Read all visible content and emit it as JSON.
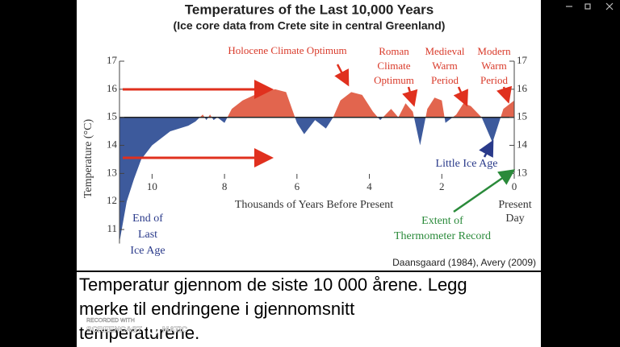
{
  "chart_data": {
    "type": "area",
    "title": "Temperatures of the Last 10,000 Years",
    "subtitle": "(Ice core data from Crete site in central Greenland)",
    "x_label": "Thousands of Years Before Present",
    "y_label": "Temperature (°C)",
    "source": "Daansgaard (1984), Avery (2009)",
    "xlim": [
      10.9,
      0
    ],
    "xticks": [
      10,
      8,
      6,
      4,
      2,
      0
    ],
    "ylim": [
      10.5,
      17
    ],
    "yticks": [
      11,
      12,
      13,
      14,
      15,
      16,
      17
    ],
    "y2lim": [
      10.5,
      17
    ],
    "y2ticks": [
      13,
      14,
      15,
      16,
      17
    ],
    "baseline": 15,
    "color_above": "#e2654e",
    "color_below": "#3d5a9c",
    "x": [
      10.9,
      10.7,
      10.5,
      10.3,
      10.0,
      9.5,
      9.0,
      8.8,
      8.6,
      8.5,
      8.4,
      8.3,
      8.2,
      8.0,
      7.8,
      7.5,
      7.0,
      6.6,
      6.3,
      6.0,
      5.8,
      5.5,
      5.2,
      5.0,
      4.8,
      4.5,
      4.2,
      3.9,
      3.7,
      3.4,
      3.2,
      3.0,
      2.8,
      2.6,
      2.4,
      2.2,
      2.0,
      1.9,
      1.6,
      1.4,
      1.2,
      0.9,
      0.6,
      0.5,
      0.3,
      0.1,
      0
    ],
    "values": [
      10.55,
      12.0,
      12.8,
      13.5,
      14.0,
      14.5,
      14.7,
      14.85,
      15.1,
      14.9,
      15.1,
      14.9,
      15.0,
      14.8,
      15.3,
      15.6,
      15.9,
      16.0,
      15.9,
      14.8,
      14.4,
      14.9,
      14.6,
      15.0,
      15.6,
      15.9,
      15.8,
      15.2,
      14.9,
      15.3,
      15.0,
      15.5,
      15.2,
      14.0,
      15.3,
      15.7,
      15.6,
      14.8,
      15.1,
      15.5,
      15.4,
      15.0,
      14.1,
      14.5,
      15.3,
      15.5,
      15.6
    ],
    "annotations": [
      [
        "Holocene Climate Optimum"
      ],
      [
        "Roman",
        "Climate",
        "Optimum"
      ],
      [
        "Medieval",
        "Warm",
        "Period"
      ],
      [
        "Modern",
        "Warm",
        "Period"
      ],
      [
        "End of",
        "Last",
        "Ice Age"
      ],
      [
        "Little Ice Age"
      ],
      [
        "Extent of",
        "Thermometer Record"
      ],
      [
        "Present",
        "Day"
      ]
    ]
  },
  "caption": [
    "Temperatur gjennom de siste 10 000 årene. Legg",
    "merke til endringene i gjennomsnitt",
    "temperaturene."
  ],
  "watermark": [
    "RECORDED WITH",
    "SCREENCAST",
    "MATIC"
  ]
}
